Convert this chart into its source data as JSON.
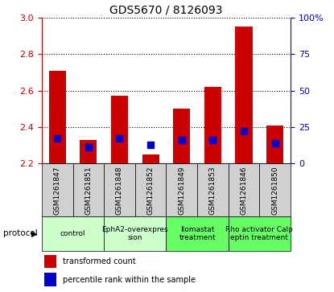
{
  "title": "GDS5670 / 8126093",
  "samples": [
    "GSM1261847",
    "GSM1261851",
    "GSM1261848",
    "GSM1261852",
    "GSM1261849",
    "GSM1261853",
    "GSM1261846",
    "GSM1261850"
  ],
  "transformed_counts": [
    2.71,
    2.33,
    2.57,
    2.25,
    2.5,
    2.62,
    2.95,
    2.41
  ],
  "percentile_ranks": [
    17,
    11,
    17,
    13,
    16,
    16,
    22,
    14
  ],
  "ylim": [
    2.2,
    3.0
  ],
  "y2lim": [
    0,
    100
  ],
  "yticks": [
    2.2,
    2.4,
    2.6,
    2.8,
    3.0
  ],
  "y2ticks": [
    0,
    25,
    50,
    75,
    100
  ],
  "protocols": [
    {
      "label": "control",
      "samples": [
        0,
        1
      ],
      "color": "#ccffcc"
    },
    {
      "label": "EphA2-overexpres\nsion",
      "samples": [
        2,
        3
      ],
      "color": "#ccffcc"
    },
    {
      "label": "Ilomastat\ntreatment",
      "samples": [
        4,
        5
      ],
      "color": "#66ff66"
    },
    {
      "label": "Rho activator Calp\neptin treatment",
      "samples": [
        6,
        7
      ],
      "color": "#66ff66"
    }
  ],
  "bar_color": "#cc0000",
  "dot_color": "#0000cc",
  "bar_width": 0.55,
  "dot_size": 30,
  "bg_label": "#d0d0d0",
  "ylabel_color": "#cc0000",
  "y2label_color": "#0000cc",
  "legend_red": "transformed count",
  "legend_blue": "percentile rank within the sample",
  "protocol_label": "protocol"
}
